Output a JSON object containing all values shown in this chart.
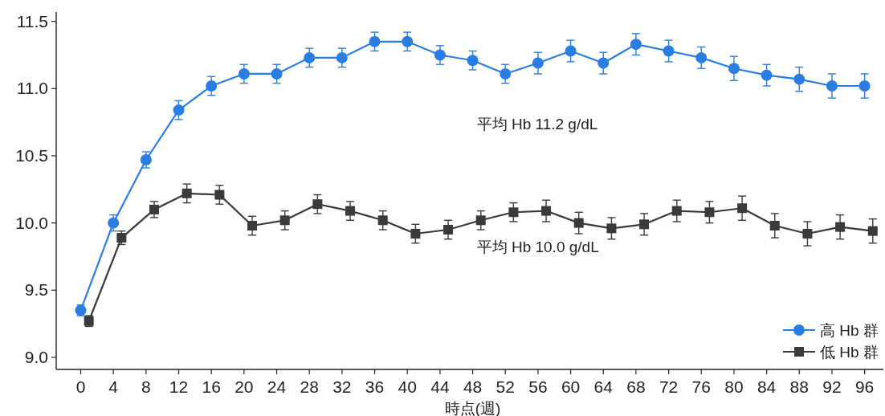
{
  "chart_data": {
    "type": "line",
    "xlabel": "時点(週)",
    "xlim": [
      -3,
      98.3
    ],
    "ylim": [
      8.91,
      11.57
    ],
    "xticks": [
      0,
      4,
      8,
      12,
      16,
      20,
      24,
      28,
      32,
      36,
      40,
      44,
      48,
      52,
      56,
      60,
      64,
      68,
      72,
      76,
      80,
      84,
      88,
      92,
      96
    ],
    "yticks": [
      {
        "value": 9,
        "label": "9.0"
      },
      {
        "value": 9.5,
        "label": "9.5"
      },
      {
        "value": 10,
        "label": "10.0"
      },
      {
        "value": 10.5,
        "label": "10.5"
      },
      {
        "value": 11,
        "label": "11.0"
      },
      {
        "value": 11.5,
        "label": "11.5"
      }
    ],
    "annotations": [
      "平均 Hb 11.2 g/dL",
      "平均 Hb 10.0 g/dL"
    ],
    "legend": "bottom right",
    "grid": false,
    "series": [
      {
        "name": "高 Hb 群",
        "color": "#2a7de1",
        "marker": "circle",
        "x": [
          0,
          4,
          8,
          12,
          16,
          20,
          24,
          28,
          32,
          36,
          40,
          44,
          48,
          52,
          56,
          60,
          64,
          68,
          72,
          76,
          80,
          84,
          88,
          92,
          96
        ],
        "values": [
          9.35,
          10.0,
          10.47,
          10.84,
          11.02,
          11.11,
          11.11,
          11.23,
          11.23,
          11.35,
          11.35,
          11.25,
          11.21,
          11.11,
          11.19,
          11.28,
          11.19,
          11.33,
          11.28,
          11.23,
          11.15,
          11.1,
          11.07,
          11.02,
          11.02
        ],
        "errors": [
          0.04,
          0.06,
          0.06,
          0.07,
          0.07,
          0.07,
          0.07,
          0.07,
          0.07,
          0.07,
          0.07,
          0.07,
          0.07,
          0.07,
          0.08,
          0.08,
          0.08,
          0.08,
          0.08,
          0.08,
          0.09,
          0.08,
          0.09,
          0.09,
          0.09
        ]
      },
      {
        "name": "低 Hb 群",
        "color": "#3a3a3a",
        "marker": "square",
        "x": [
          1,
          5,
          9,
          13,
          17,
          21,
          25,
          29,
          33,
          37,
          41,
          45,
          49,
          53,
          57,
          61,
          65,
          69,
          73,
          77,
          81,
          85,
          89,
          93,
          97
        ],
        "values": [
          9.27,
          9.89,
          10.1,
          10.22,
          10.21,
          9.98,
          10.02,
          10.14,
          10.09,
          10.02,
          9.92,
          9.95,
          10.02,
          10.08,
          10.09,
          10.0,
          9.96,
          9.99,
          10.09,
          10.08,
          10.11,
          9.98,
          9.92,
          9.97,
          9.94
        ],
        "errors": [
          0.04,
          0.05,
          0.06,
          0.07,
          0.07,
          0.07,
          0.07,
          0.07,
          0.07,
          0.07,
          0.07,
          0.07,
          0.07,
          0.07,
          0.08,
          0.08,
          0.08,
          0.08,
          0.08,
          0.08,
          0.09,
          0.09,
          0.09,
          0.09,
          0.09
        ]
      }
    ]
  }
}
